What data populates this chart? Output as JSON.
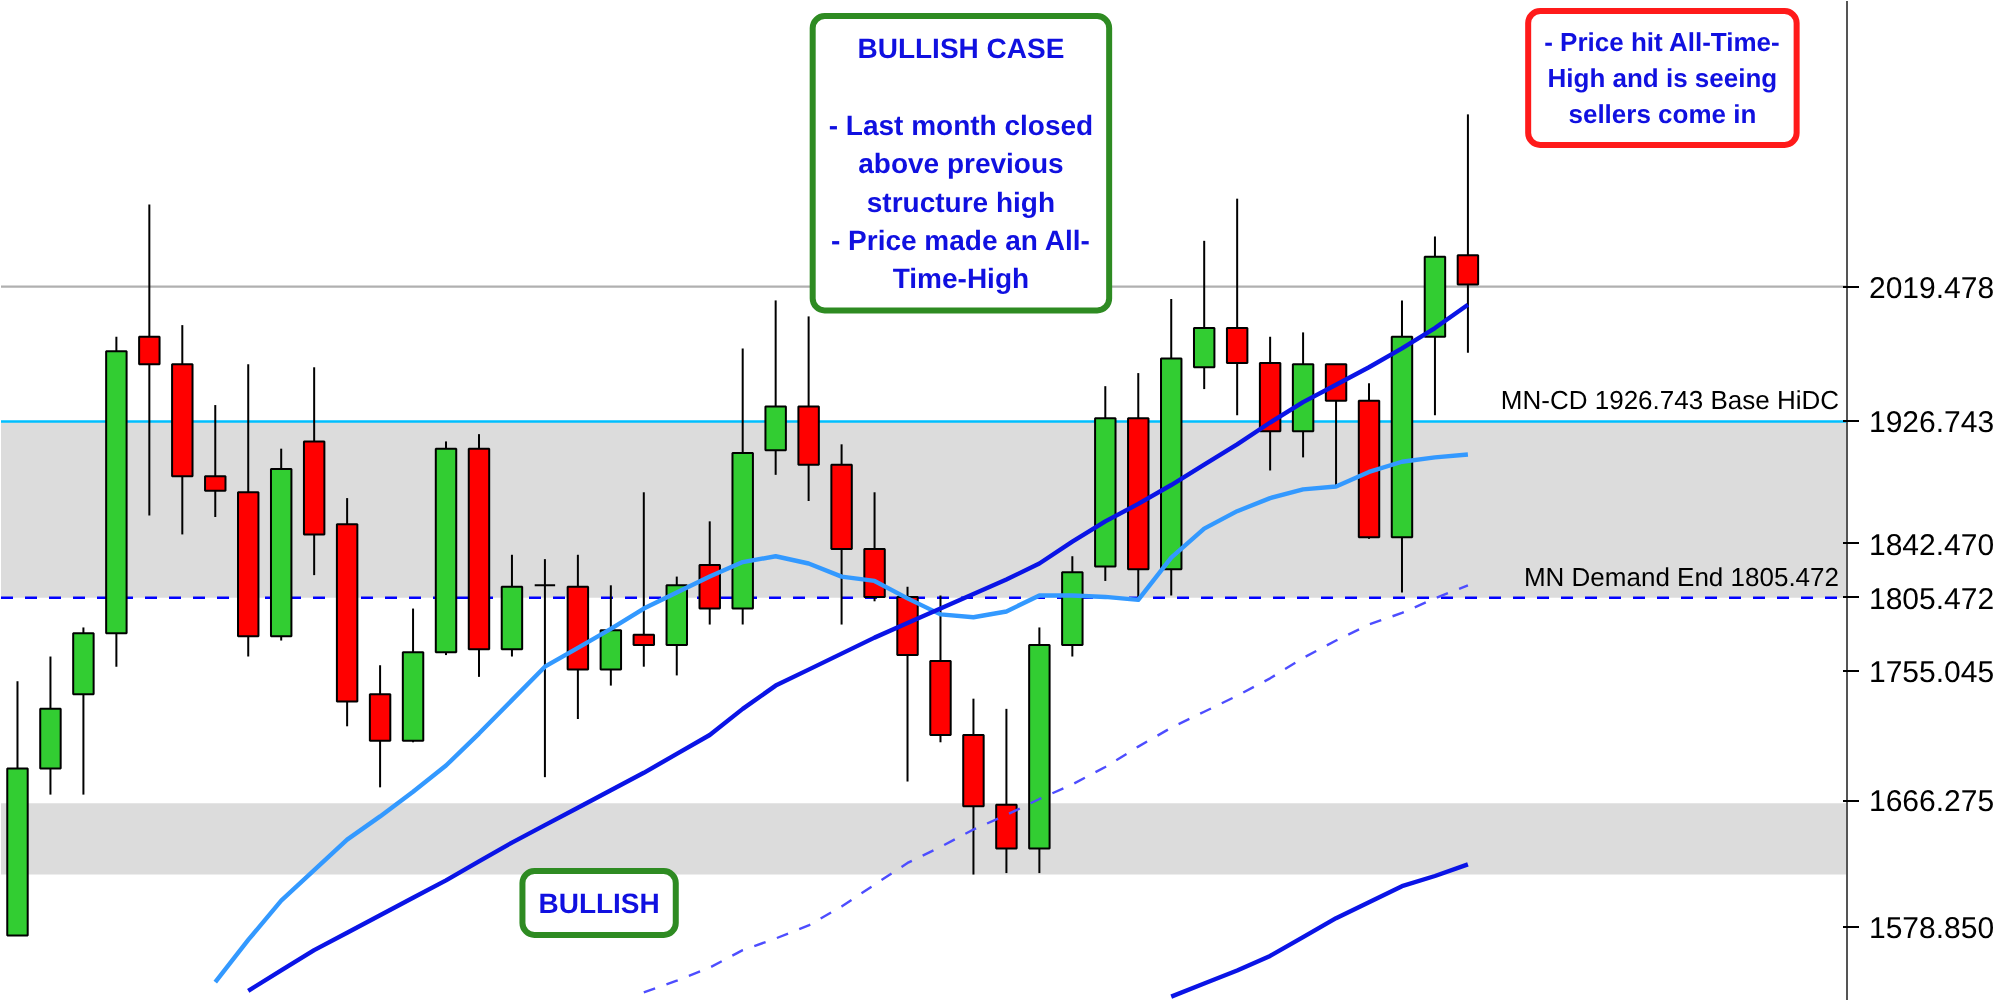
{
  "chart_data": {
    "type": "candlestick",
    "categories": [
      null,
      null,
      null,
      null,
      null,
      null,
      null,
      null,
      null,
      null,
      null,
      null,
      null,
      null,
      null,
      null,
      null,
      null,
      null,
      null,
      null,
      null,
      null,
      null,
      null,
      null,
      null,
      null,
      null,
      null,
      null,
      null,
      null,
      null,
      null,
      null,
      null,
      null,
      null,
      null,
      null,
      null,
      null,
      null,
      null,
      null,
      null,
      null,
      null,
      null,
      null,
      null,
      null,
      null,
      null,
      null
    ],
    "ohlc": [
      [
        1573,
        1748,
        1573,
        1688
      ],
      [
        1688,
        1765,
        1670,
        1729
      ],
      [
        1739,
        1785,
        1670,
        1781
      ],
      [
        1781,
        1985,
        1758,
        1975
      ],
      [
        1985,
        2076,
        1862,
        1966
      ],
      [
        1966,
        1993,
        1849,
        1889
      ],
      [
        1889,
        1938,
        1861,
        1879
      ],
      [
        1878,
        1966,
        1765,
        1779
      ],
      [
        1779,
        1908,
        1776,
        1894
      ],
      [
        1913,
        1964,
        1821,
        1849
      ],
      [
        1856,
        1874,
        1717,
        1734
      ],
      [
        1739,
        1759,
        1675,
        1707
      ],
      [
        1707,
        1798,
        1706,
        1768
      ],
      [
        1768,
        1913,
        1766,
        1908
      ],
      [
        1908,
        1918,
        1751,
        1770
      ],
      [
        1770,
        1835,
        1765,
        1813
      ],
      [
        1814,
        1832,
        1682,
        1814
      ],
      [
        1813,
        1835,
        1722,
        1756
      ],
      [
        1756,
        1814,
        1745,
        1783
      ],
      [
        1780,
        1878,
        1758,
        1773
      ],
      [
        1773,
        1820,
        1752,
        1814
      ],
      [
        1828,
        1858,
        1787,
        1798
      ],
      [
        1798,
        1977,
        1787,
        1905
      ],
      [
        1907,
        2010,
        1890,
        1937
      ],
      [
        1937,
        1999,
        1872,
        1897
      ],
      [
        1897,
        1911,
        1787,
        1839
      ],
      [
        1839,
        1878,
        1803,
        1806
      ],
      [
        1806,
        1813,
        1679,
        1766
      ],
      [
        1762,
        1807,
        1706,
        1711
      ],
      [
        1711,
        1736,
        1615,
        1662
      ],
      [
        1663,
        1729,
        1616,
        1633
      ],
      [
        1633,
        1785,
        1616,
        1773
      ],
      [
        1773,
        1834,
        1765,
        1823
      ],
      [
        1827,
        1951,
        1817,
        1929
      ],
      [
        1929,
        1960,
        1806,
        1825
      ],
      [
        1825,
        2011,
        1807,
        1970
      ],
      [
        1964,
        2051,
        1949,
        1991
      ],
      [
        1991,
        2080,
        1931,
        1967
      ],
      [
        1967,
        1985,
        1893,
        1920
      ],
      [
        1920,
        1988,
        1902,
        1966
      ],
      [
        1966,
        1966,
        1883,
        1941
      ],
      [
        1941,
        1953,
        1846,
        1847
      ],
      [
        1847,
        2010,
        1809,
        1985
      ],
      [
        1985,
        2054,
        1931,
        2040
      ],
      [
        2041,
        2138,
        1974,
        2021
      ],
      null,
      null,
      null,
      null,
      null,
      null,
      null,
      null,
      null,
      null,
      null
    ],
    "colors": [
      "#32cd32",
      "#32cd32",
      "#32cd32",
      "#32cd32",
      "#ff0000",
      "#ff0000",
      "#ff0000",
      "#ff0000",
      "#32cd32",
      "#ff0000",
      "#ff0000",
      "#ff0000",
      "#32cd32",
      "#32cd32",
      "#ff0000",
      "#32cd32",
      "#000000",
      "#ff0000",
      "#32cd32",
      "#ff0000",
      "#32cd32",
      "#ff0000",
      "#32cd32",
      "#32cd32",
      "#ff0000",
      "#ff0000",
      "#ff0000",
      "#ff0000",
      "#ff0000",
      "#ff0000",
      "#ff0000",
      "#32cd32",
      "#32cd32",
      "#32cd32",
      "#ff0000",
      "#32cd32",
      "#32cd32",
      "#ff0000",
      "#ff0000",
      "#32cd32",
      "#ff0000",
      "#ff0000",
      "#32cd32",
      "#32cd32",
      "#ff0000",
      null,
      null,
      null,
      null,
      null,
      null,
      null,
      null,
      null,
      null,
      null
    ],
    "series": [
      {
        "type": "line",
        "color": "#3399ff",
        "values": [
          null,
          null,
          null,
          null,
          null,
          null,
          1541,
          1570,
          1597,
          1618,
          1639,
          1655,
          1672,
          1690,
          1712,
          1735,
          1758,
          1771,
          1784,
          1798,
          1809,
          1820,
          1830,
          1834,
          1829,
          1820,
          1817,
          1805,
          1794,
          1792,
          1796,
          1807,
          1807,
          1806,
          1804,
          1833,
          1853,
          1865,
          1874,
          1880,
          1882,
          1892,
          1899,
          1902,
          1904,
          null,
          null,
          null,
          null,
          null,
          null,
          null,
          null,
          null,
          null,
          null
        ]
      },
      {
        "type": "line",
        "color": "#0a14e6",
        "values": [
          null,
          null,
          null,
          null,
          null,
          null,
          null,
          1535,
          1549,
          1563,
          1575,
          1587,
          1599,
          1611,
          1624,
          1637,
          1649,
          1661,
          1673,
          1685,
          1698,
          1711,
          1729,
          1745,
          1756,
          1767,
          1778,
          1788,
          1798,
          1808,
          1818,
          1829,
          1844,
          1858,
          1870,
          1883,
          1897,
          1911,
          1926,
          1940,
          1952,
          1964,
          1977,
          1991,
          2007,
          null,
          null,
          null,
          null,
          null,
          null,
          null,
          null,
          null,
          null,
          null
        ]
      },
      {
        "type": "line",
        "color": "#0a14e6",
        "values": [
          null,
          null,
          null,
          null,
          null,
          null,
          null,
          null,
          null,
          null,
          null,
          null,
          null,
          null,
          null,
          null,
          null,
          null,
          null,
          null,
          null,
          null,
          null,
          null,
          null,
          null,
          null,
          null,
          null,
          null,
          null,
          null,
          null,
          null,
          null,
          1531,
          1540,
          1549,
          1559,
          1572,
          1585,
          1596,
          1607,
          1614,
          1622,
          null,
          null,
          null,
          null,
          null,
          null,
          null,
          null,
          null,
          null,
          null
        ]
      },
      {
        "type": "line",
        "color": "#4d4dff",
        "line_style": "dashed",
        "values": [
          null,
          null,
          null,
          null,
          null,
          null,
          null,
          null,
          null,
          null,
          null,
          null,
          null,
          null,
          null,
          null,
          null,
          null,
          null,
          1534,
          1542,
          1551,
          1563,
          1571,
          1580,
          1593,
          1608,
          1623,
          1634,
          1646,
          1656,
          1667,
          1677,
          1689,
          1703,
          1716,
          1727,
          1738,
          1750,
          1764,
          1776,
          1787,
          1795,
          1805,
          1814,
          null,
          null,
          null,
          null,
          null,
          null,
          null,
          null,
          null,
          null,
          null
        ]
      }
    ],
    "ylim": [
      1528,
      2216
    ],
    "yticks": [
      {
        "value": 1578.85,
        "label": "1578.850"
      },
      1666.275,
      1755.045,
      1805.472,
      {
        "value": 1842.47,
        "label": "1842.470"
      },
      1926.743,
      2019.478
    ],
    "tick_labels": "y",
    "grid": false,
    "ref_lines": [
      {
        "axis": "y",
        "value": 2019.478,
        "color": "#b0b0b0",
        "line_style": "solid"
      },
      {
        "axis": "y",
        "value": 1926.743,
        "label": "MN-CD 1926.743 Base HiDC",
        "color": "#00bfff",
        "line_style": "solid"
      },
      {
        "axis": "y",
        "value": 1805.472,
        "label": "MN Demand End 1805.472",
        "color": "#0000ff",
        "line_style": "dashed"
      }
    ],
    "bands": [
      {
        "axis": "y",
        "from": 1805.472,
        "to": 1926.743,
        "color": "#dcdcdc"
      },
      {
        "axis": "y",
        "from": 1615,
        "to": 1664,
        "color": "#dcdcdc"
      }
    ],
    "annotations": [
      "BULLISH CASE\n\n- Last month closed\nabove previous\nstructure high\n- Price made an All-\nTime-High",
      "- Price hit All-Time-\nHigh and is seeing\nsellers come in",
      "BULLISH"
    ]
  }
}
